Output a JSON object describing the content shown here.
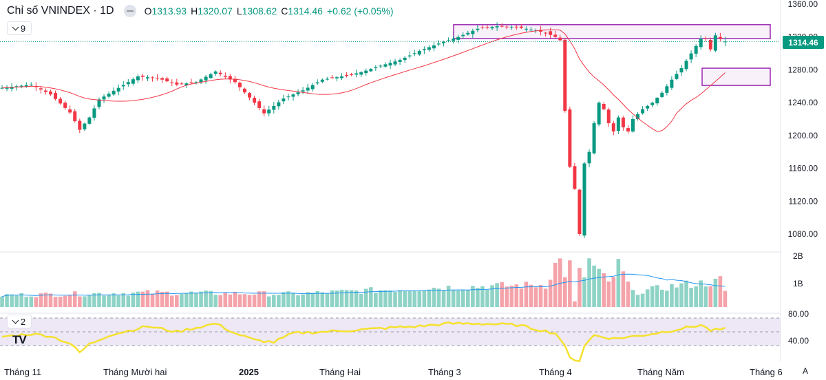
{
  "header": {
    "title": "Chỉ số VNINDEX · 1D",
    "o_label": "O",
    "o_value": "1313.93",
    "h_label": "H",
    "h_value": "1320.07",
    "l_label": "L",
    "l_value": "1308.62",
    "c_label": "C",
    "c_value": "1314.46",
    "change": "+0.62 (+0.05%)"
  },
  "collapse_count": "9",
  "indicator_count": "2",
  "last_price_label": "1314.46",
  "auto_label": "A",
  "colors": {
    "up": "#089981",
    "down": "#f23645",
    "ma": "#f23645",
    "vol_ma": "#2196f3",
    "rsi": "#fde047",
    "rsi_band": "#ede7f6",
    "zone": "#9c27b0",
    "up_vol": "#8fd3c6",
    "down_vol": "#f5a3aa"
  },
  "chart_data": {
    "type": "candlestick",
    "title": "Chỉ số VNINDEX · 1D",
    "price_ticks": [
      "1360.00",
      "1320.00",
      "1280.00",
      "1240.00",
      "1200.00",
      "1160.00",
      "1120.00",
      "1080.00"
    ],
    "price_tick_values": [
      1360,
      1320,
      1280,
      1240,
      1200,
      1160,
      1120,
      1080
    ],
    "volume_ticks": [
      "2B",
      "1B"
    ],
    "rsi_ticks": [
      "80.00",
      "40.00"
    ],
    "x_labels": [
      "Tháng 11",
      "Tháng Mười hai",
      "2025",
      "Tháng Hai",
      "Tháng 3",
      "Tháng 4",
      "Tháng Năm",
      "Tháng 6"
    ],
    "x_label_bold": [
      false,
      false,
      true,
      false,
      false,
      false,
      false,
      false
    ],
    "price_anchors": [
      [
        0,
        1258
      ],
      [
        6,
        1262
      ],
      [
        10,
        1250
      ],
      [
        14,
        1228
      ],
      [
        16,
        1207
      ],
      [
        18,
        1222
      ],
      [
        20,
        1244
      ],
      [
        24,
        1258
      ],
      [
        28,
        1272
      ],
      [
        32,
        1270
      ],
      [
        36,
        1262
      ],
      [
        40,
        1265
      ],
      [
        44,
        1278
      ],
      [
        48,
        1265
      ],
      [
        52,
        1240
      ],
      [
        54,
        1227
      ],
      [
        58,
        1245
      ],
      [
        62,
        1255
      ],
      [
        66,
        1268
      ],
      [
        70,
        1272
      ],
      [
        74,
        1277
      ],
      [
        78,
        1285
      ],
      [
        82,
        1292
      ],
      [
        86,
        1303
      ],
      [
        90,
        1312
      ],
      [
        94,
        1320
      ],
      [
        98,
        1330
      ],
      [
        102,
        1333
      ],
      [
        106,
        1332
      ],
      [
        110,
        1328
      ],
      [
        112,
        1325
      ],
      [
        114,
        1320
      ],
      [
        115,
        1316
      ],
      [
        116,
        1230
      ],
      [
        117,
        1162
      ],
      [
        118,
        1135
      ],
      [
        119,
        1080
      ],
      [
        120,
        1166
      ],
      [
        121,
        1180
      ],
      [
        122,
        1215
      ],
      [
        123,
        1240
      ],
      [
        124,
        1232
      ],
      [
        125,
        1215
      ],
      [
        126,
        1205
      ],
      [
        127,
        1222
      ],
      [
        128,
        1210
      ],
      [
        129,
        1205
      ],
      [
        130,
        1220
      ],
      [
        132,
        1232
      ],
      [
        134,
        1240
      ],
      [
        136,
        1252
      ],
      [
        138,
        1268
      ],
      [
        140,
        1282
      ],
      [
        142,
        1300
      ],
      [
        144,
        1318
      ],
      [
        145,
        1318
      ],
      [
        146,
        1305
      ],
      [
        147,
        1322
      ],
      [
        148,
        1318
      ],
      [
        149,
        1314.46
      ]
    ],
    "volume_anchors": [
      [
        0,
        0.45
      ],
      [
        30,
        0.55
      ],
      [
        60,
        0.5
      ],
      [
        90,
        0.75
      ],
      [
        112,
        0.85
      ],
      [
        114,
        1.6
      ],
      [
        115,
        1.75
      ],
      [
        116,
        1.3
      ],
      [
        117,
        1.6
      ],
      [
        118,
        0.2
      ],
      [
        119,
        1.3
      ],
      [
        120,
        1.2
      ],
      [
        121,
        1.75
      ],
      [
        125,
        0.9
      ],
      [
        126,
        1.2
      ],
      [
        127,
        1.6
      ],
      [
        130,
        0.55
      ],
      [
        140,
        0.85
      ],
      [
        147,
        0.95
      ],
      [
        148,
        1.05
      ],
      [
        149,
        0.55
      ]
    ],
    "rsi_anchors": [
      [
        0,
        53
      ],
      [
        6,
        57
      ],
      [
        10,
        54
      ],
      [
        14,
        43
      ],
      [
        16,
        30
      ],
      [
        18,
        42
      ],
      [
        22,
        55
      ],
      [
        30,
        68
      ],
      [
        36,
        60
      ],
      [
        44,
        72
      ],
      [
        48,
        58
      ],
      [
        52,
        48
      ],
      [
        56,
        45
      ],
      [
        60,
        58
      ],
      [
        66,
        60
      ],
      [
        74,
        63
      ],
      [
        80,
        66
      ],
      [
        86,
        68
      ],
      [
        92,
        72
      ],
      [
        98,
        72
      ],
      [
        106,
        70
      ],
      [
        114,
        58
      ],
      [
        115,
        50
      ],
      [
        116,
        38
      ],
      [
        117,
        22
      ],
      [
        118,
        20
      ],
      [
        119,
        18
      ],
      [
        120,
        40
      ],
      [
        122,
        55
      ],
      [
        126,
        50
      ],
      [
        132,
        55
      ],
      [
        138,
        62
      ],
      [
        144,
        70
      ],
      [
        146,
        62
      ],
      [
        149,
        64
      ]
    ],
    "ylim": [
      1065,
      1365
    ],
    "zones": [
      {
        "from_index": 97,
        "to_index": 155,
        "from_value": 1318,
        "to_value": 1335
      },
      {
        "from_index": 151,
        "to_index": 155,
        "from_value": 1261,
        "to_value": 1282
      }
    ]
  }
}
